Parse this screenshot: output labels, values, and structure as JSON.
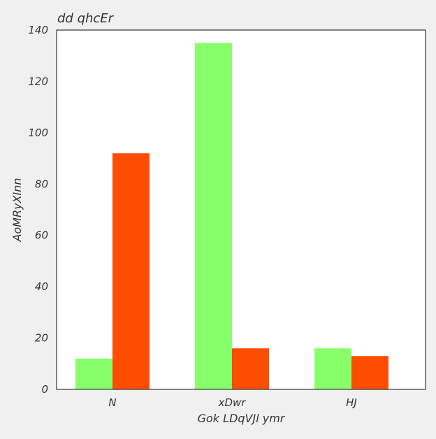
{
  "chart_data": {
    "type": "bar",
    "title": "dd qhcEr",
    "xlabel": "Gok LDqVJl ymr",
    "ylabel": "AoMRyXInn",
    "categories": [
      "N",
      "xDwr",
      "HJ"
    ],
    "series": [
      {
        "values": [
          12,
          135,
          16
        ],
        "color": "#87ff6b"
      },
      {
        "values": [
          92,
          16,
          13
        ],
        "color": "#ff4d00"
      }
    ],
    "ylim": [
      0,
      140
    ],
    "yticks": [
      0,
      20,
      40,
      60,
      80,
      100,
      120,
      140
    ],
    "grid": false,
    "legend": "none"
  }
}
